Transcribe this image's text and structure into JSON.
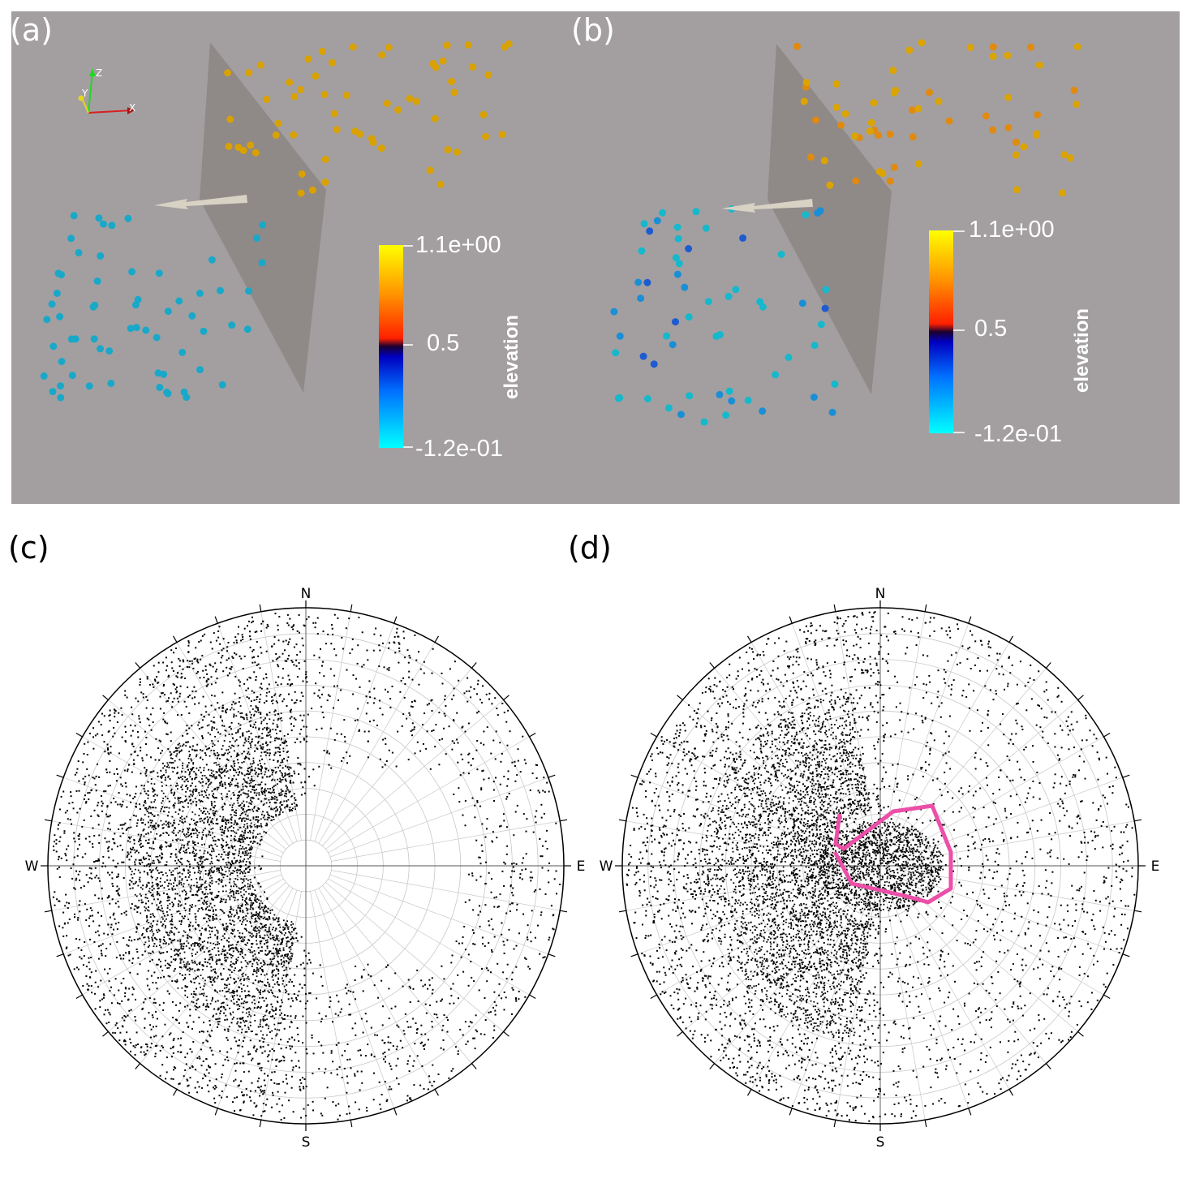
{
  "panels": {
    "a": {
      "label": "(a)",
      "axes": {
        "z": "Z",
        "y": "Y",
        "x": "X"
      },
      "colorbar": {
        "title": "elevation",
        "max_label": "1.1e+00",
        "mid_label": "0.5",
        "min_label": "-1.2e-01"
      }
    },
    "b": {
      "label": "(b)",
      "colorbar": {
        "title": "elevation",
        "max_label": "1.1e+00",
        "mid_label": "0.5",
        "min_label": "-1.2e-01"
      }
    },
    "c": {
      "label": "(c)",
      "compass": {
        "north": "N",
        "south": "S",
        "east": "E",
        "west": "W"
      }
    },
    "d": {
      "label": "(d)",
      "compass": {
        "north": "N",
        "south": "S",
        "east": "E",
        "west": "W"
      }
    }
  },
  "colors": {
    "background": "#a39fa0",
    "plane": "#8c8584",
    "arrow": "#d8d2c4",
    "upper_points": "#d9a100",
    "lower_points": "#1aa8c8",
    "region_outline": "#ec4fa8",
    "colormap": [
      "#00ffff",
      "#0070ff",
      "#0000c0",
      "#1a0030",
      "#ff2000",
      "#ff9000",
      "#ffff00"
    ]
  }
}
